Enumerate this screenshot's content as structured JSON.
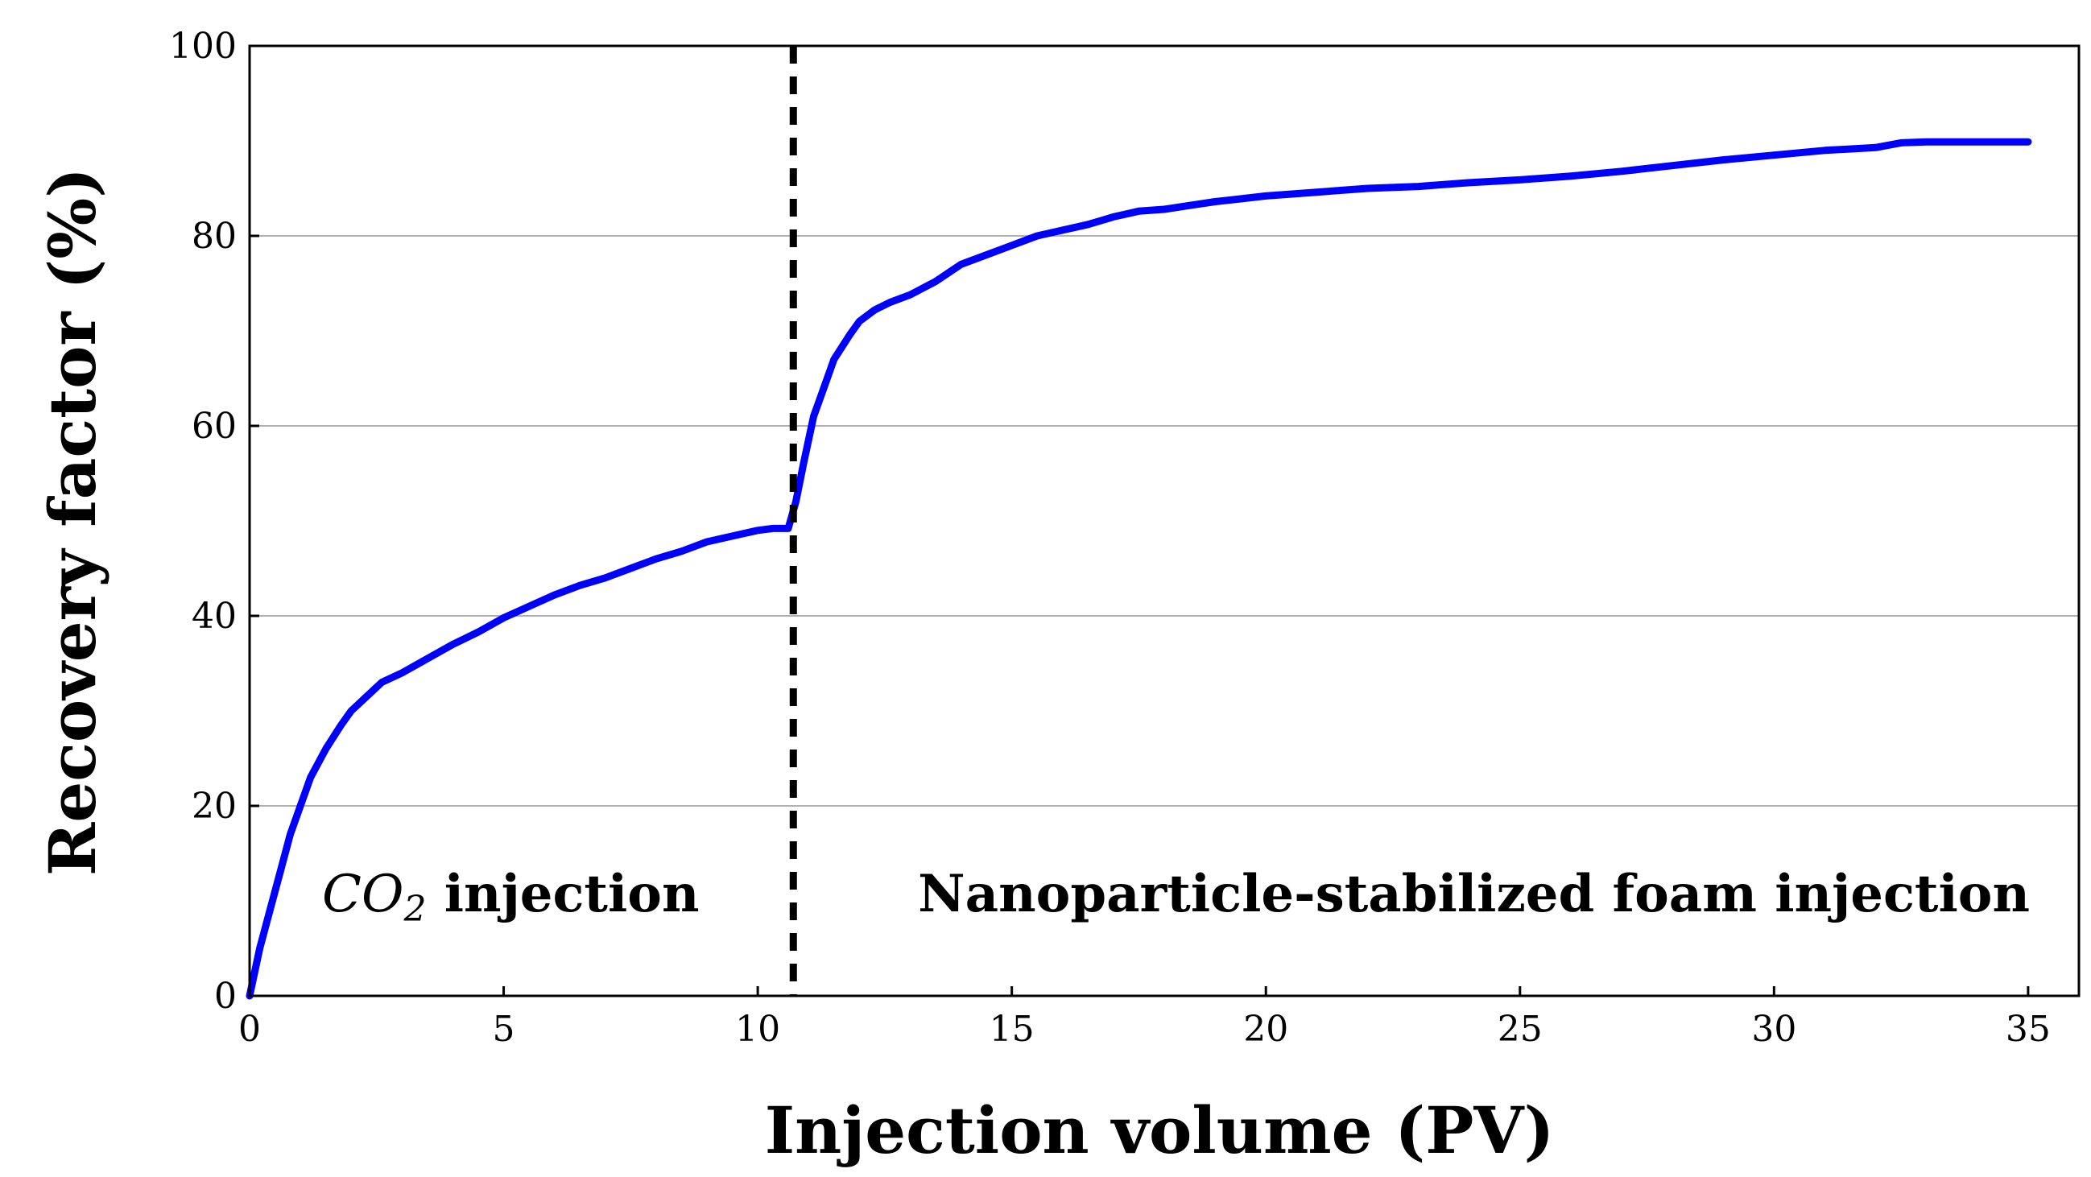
{
  "chart_data": {
    "type": "line",
    "title": "",
    "xlabel": "Injection volume (PV)",
    "ylabel": "Recovery factor (%)",
    "xlim": [
      0,
      36
    ],
    "ylim": [
      0,
      100
    ],
    "x_ticks": [
      0,
      5,
      10,
      15,
      20,
      25,
      30,
      35
    ],
    "y_ticks": [
      0,
      20,
      40,
      60,
      80,
      100
    ],
    "grid": "horizontal",
    "colors": {
      "series": "#0000ff",
      "divider": "#000000",
      "grid": "#b0b0b0"
    },
    "series": [
      {
        "name": "Recovery factor",
        "x": [
          0,
          0.2,
          0.4,
          0.6,
          0.8,
          1.0,
          1.2,
          1.5,
          1.8,
          2.0,
          2.3,
          2.6,
          3.0,
          3.5,
          4.0,
          4.5,
          5.0,
          5.5,
          6.0,
          6.5,
          7.0,
          7.5,
          8.0,
          8.5,
          9.0,
          9.5,
          10.0,
          10.3,
          10.6,
          10.75,
          10.9,
          11.1,
          11.3,
          11.5,
          11.8,
          12.0,
          12.3,
          12.6,
          13.0,
          13.5,
          14.0,
          14.5,
          15.0,
          15.5,
          16.0,
          16.5,
          17.0,
          17.5,
          18.0,
          18.5,
          19.0,
          19.5,
          20.0,
          21.0,
          22.0,
          23.0,
          24.0,
          25.0,
          26.0,
          27.0,
          28.0,
          29.0,
          30.0,
          31.0,
          32.0,
          32.5,
          33.0,
          34.0,
          35.0
        ],
        "y": [
          0,
          5,
          9,
          13,
          17,
          20,
          23,
          26,
          28.5,
          30,
          31.5,
          33,
          34,
          35.5,
          37,
          38.3,
          39.8,
          41,
          42.2,
          43.2,
          44,
          45,
          46,
          46.8,
          47.8,
          48.4,
          49,
          49.2,
          49.2,
          52,
          56,
          61,
          64,
          67,
          69.5,
          71,
          72.2,
          73,
          73.8,
          75.2,
          77,
          78,
          79,
          80,
          80.6,
          81.2,
          82,
          82.6,
          82.8,
          83.2,
          83.6,
          83.9,
          84.2,
          84.6,
          85,
          85.2,
          85.6,
          85.9,
          86.3,
          86.8,
          87.4,
          88,
          88.5,
          89,
          89.3,
          89.8,
          89.9,
          89.9,
          89.9
        ]
      }
    ],
    "divider_x": 10.7,
    "annotations": {
      "left_italic": "CO",
      "left_subscript": "2",
      "left_text": " injection",
      "right_text": "Nanoparticle-stabilized foam injection"
    }
  }
}
